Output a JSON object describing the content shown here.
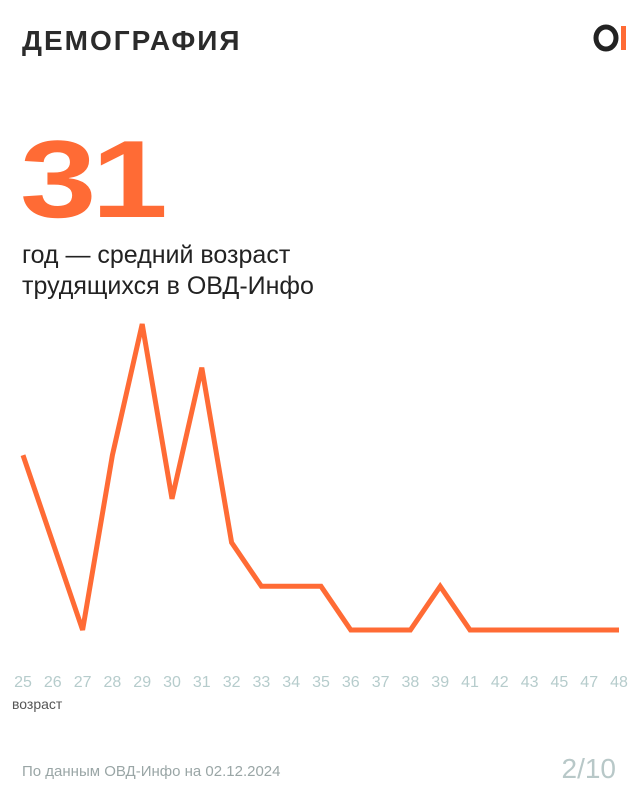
{
  "header": {
    "title": "ДЕМОГРАФИЯ"
  },
  "headline": {
    "number": "31",
    "caption_lines": [
      "год — средний возраст",
      "трудящихся в ОВД-Инфо"
    ]
  },
  "chart_data": {
    "type": "line",
    "x_label": "возраст",
    "categories": [
      "25",
      "26",
      "27",
      "28",
      "29",
      "30",
      "31",
      "32",
      "33",
      "34",
      "35",
      "36",
      "37",
      "38",
      "39",
      "41",
      "42",
      "43",
      "45",
      "47",
      "48"
    ],
    "values": [
      5,
      3,
      1,
      5,
      8,
      4,
      7,
      3,
      2,
      2,
      2,
      1,
      1,
      1,
      2,
      1,
      1,
      1,
      1,
      1,
      1
    ],
    "color": "#ff6b35"
  },
  "footer": {
    "source": "По данным ОВД-Инфо на 02.12.2024",
    "page": "2/10"
  }
}
